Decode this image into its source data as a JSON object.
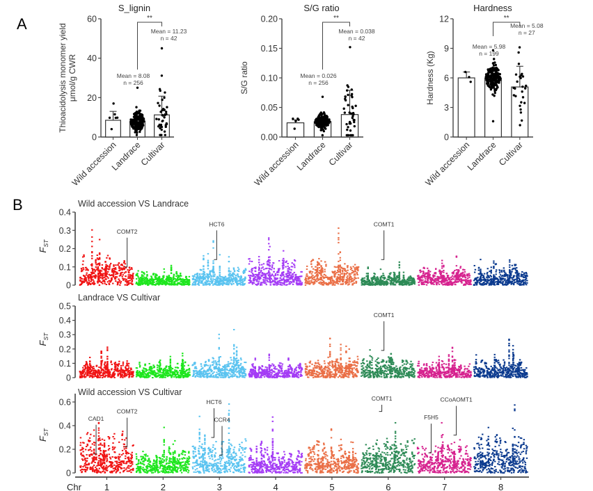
{
  "panel_labels": {
    "a": "A",
    "b": "B"
  },
  "chart_data": [
    {
      "type": "bar",
      "id": "s_lignin",
      "title": "S_lignin",
      "ylabel": [
        "Thioacidolysis monomer yield",
        "μmol/g CWR"
      ],
      "ylim": [
        0,
        60
      ],
      "yticks": [
        0,
        20,
        40,
        60
      ],
      "categories": [
        "Wild accession",
        "Landrace",
        "Cultivar"
      ],
      "values": [
        8.5,
        8.08,
        11.23
      ],
      "sd": [
        4.5,
        3.5,
        9.5
      ],
      "n": [
        6,
        256,
        42
      ],
      "annotations": [
        {
          "group": 1,
          "lines": [
            "Mean = 8.08",
            "n = 256"
          ]
        },
        {
          "group": 2,
          "lines": [
            "Mean = 11.23",
            "n = 42"
          ]
        }
      ],
      "significance": {
        "from": 1,
        "to": 2,
        "label": "**"
      },
      "point_range": [
        [
          4,
          17
        ],
        [
          1,
          25
        ],
        [
          1,
          45
        ]
      ]
    },
    {
      "type": "bar",
      "id": "sg_ratio",
      "title": "S/G ratio",
      "ylabel": [
        "S/G ratio"
      ],
      "ylim": [
        0,
        0.2
      ],
      "yticks": [
        0.0,
        0.05,
        0.1,
        0.15,
        0.2
      ],
      "yticklabels": [
        "0.00",
        "0.05",
        "0.10",
        "0.15",
        "0.20"
      ],
      "categories": [
        "Wild accession",
        "Landrace",
        "Cultivar"
      ],
      "values": [
        0.024,
        0.026,
        0.038
      ],
      "sd": [
        0.005,
        0.008,
        0.041
      ],
      "n": [
        6,
        256,
        42
      ],
      "annotations": [
        {
          "group": 1,
          "lines": [
            "Mean = 0.026",
            "n = 256"
          ]
        },
        {
          "group": 2,
          "lines": [
            "Mean = 0.038",
            "n = 42"
          ]
        }
      ],
      "significance": {
        "from": 1,
        "to": 2,
        "label": "**"
      },
      "point_range": [
        [
          0.014,
          0.031
        ],
        [
          0.003,
          0.068
        ],
        [
          0.003,
          0.152
        ]
      ]
    },
    {
      "type": "bar",
      "id": "hardness",
      "title": "Hardness",
      "ylabel": [
        "Hardness (Kg)"
      ],
      "ylim": [
        0,
        12
      ],
      "yticks": [
        0,
        3,
        6,
        9,
        12
      ],
      "categories": [
        "Wild accession",
        "Landrace",
        "Cultivar"
      ],
      "values": [
        6.0,
        5.98,
        5.08
      ],
      "sd": [
        0.6,
        0.9,
        2.1
      ],
      "n": [
        3,
        199,
        27
      ],
      "annotations": [
        {
          "group": 1,
          "lines": [
            "Mean = 5.98",
            "n = 199"
          ]
        },
        {
          "group": 2,
          "lines": [
            "Mean = 5.08",
            "n = 27"
          ]
        }
      ],
      "significance": {
        "from": 1,
        "to": 2,
        "label": "**"
      },
      "point_range": [
        [
          5.6,
          6.6
        ],
        [
          1.6,
          8.8
        ],
        [
          1.2,
          9.1
        ]
      ]
    },
    {
      "type": "scatter",
      "id": "fst_wild_landrace",
      "title": "Wild accession VS Landrace",
      "ylabel": "F",
      "ylabel_sub": "ST",
      "ylim": [
        0,
        0.4
      ],
      "yticks": [
        0,
        0.1,
        0.2,
        0.3,
        0.4
      ],
      "yticklabels": [
        "0",
        "0.1",
        "0.2",
        "0.3",
        "0.4"
      ],
      "chromosome_max": [
        0.38,
        0.14,
        0.3,
        0.31,
        0.36,
        0.16,
        0.18,
        0.2
      ],
      "chromosome_typical": [
        0.12,
        0.06,
        0.07,
        0.1,
        0.1,
        0.05,
        0.07,
        0.08
      ],
      "genes": [
        {
          "name": "COMT2",
          "chr": 1,
          "pos": 0.88,
          "fst": 0.1
        },
        {
          "name": "HCT6",
          "chr": 3,
          "pos": 0.45,
          "fst": 0.14
        },
        {
          "name": "COMT1",
          "chr": 6,
          "pos": 0.42,
          "fst": 0.14
        }
      ]
    },
    {
      "type": "scatter",
      "id": "fst_landrace_cultivar",
      "title": "Landrace VS Cultivar",
      "ylabel": "F",
      "ylabel_sub": "ST",
      "ylim": [
        0,
        0.5
      ],
      "yticks": [
        0,
        0.1,
        0.2,
        0.3,
        0.4,
        0.5
      ],
      "yticklabels": [
        "0",
        "0.1",
        "0.2",
        "0.3",
        "0.4",
        "0.5"
      ],
      "chromosome_max": [
        0.27,
        0.22,
        0.42,
        0.2,
        0.32,
        0.23,
        0.24,
        0.36
      ],
      "chromosome_typical": [
        0.09,
        0.08,
        0.1,
        0.08,
        0.1,
        0.1,
        0.09,
        0.11
      ],
      "genes": [
        {
          "name": "COMT1",
          "chr": 6,
          "pos": 0.42,
          "fst": 0.19
        }
      ]
    },
    {
      "type": "scatter",
      "id": "fst_wild_cultivar",
      "title": "Wild accession VS Cultivar",
      "ylabel": "F",
      "ylabel_sub": "ST",
      "ylim": [
        0,
        0.7
      ],
      "yticks": [
        0,
        0.2,
        0.4,
        0.6
      ],
      "yticklabels": [
        "0",
        "0.2",
        "0.4",
        "0.6"
      ],
      "xlabel": "Chr",
      "categories": [
        "1",
        "2",
        "3",
        "4",
        "5",
        "6",
        "7",
        "8"
      ],
      "chromosome_max": [
        0.55,
        0.42,
        0.67,
        0.5,
        0.5,
        0.52,
        0.52,
        0.6
      ],
      "chromosome_typical": [
        0.25,
        0.15,
        0.2,
        0.15,
        0.2,
        0.2,
        0.2,
        0.22
      ],
      "genes": [
        {
          "name": "CAD1",
          "chr": 1,
          "pos": 0.3,
          "fst": 0.16
        },
        {
          "name": "COMT2",
          "chr": 1,
          "pos": 0.88,
          "fst": 0.22
        },
        {
          "name": "HCT6",
          "chr": 3,
          "pos": 0.4,
          "fst": 0.3
        },
        {
          "name": "CCR4",
          "chr": 3,
          "pos": 0.55,
          "fst": 0.15
        },
        {
          "name": "COMT1",
          "chr": 6,
          "pos": 0.38,
          "fst": 0.52
        },
        {
          "name": "F5H5",
          "chr": 7,
          "pos": 0.25,
          "fst": 0.17
        },
        {
          "name": "CCoAOMT1",
          "chr": 7,
          "pos": 0.72,
          "fst": 0.32
        }
      ]
    }
  ],
  "colors": {
    "chr": [
      "#f01414",
      "#1ee61e",
      "#5ac3f0",
      "#a43cf5",
      "#ea6f46",
      "#2e8b57",
      "#d6238f",
      "#0c3b8f"
    ],
    "axis": "#333333",
    "text": "#222222",
    "point": "#000000"
  }
}
